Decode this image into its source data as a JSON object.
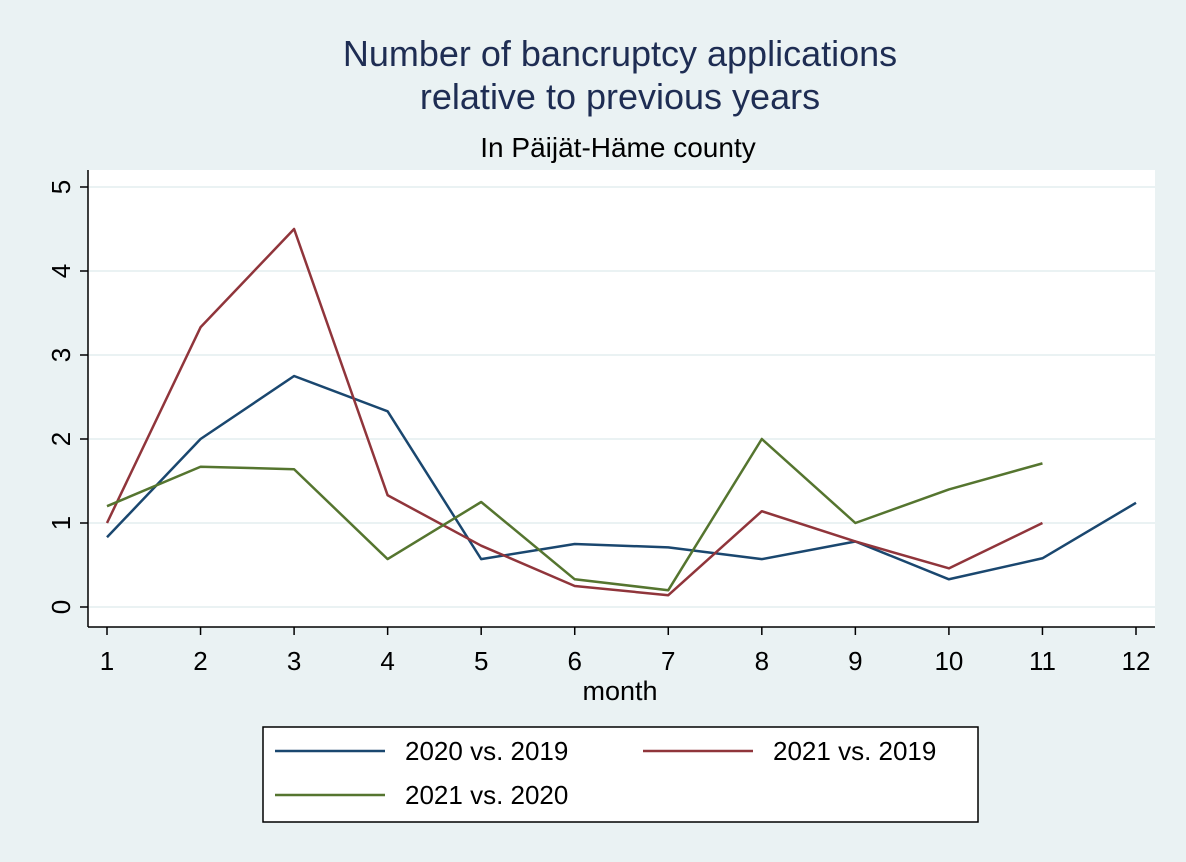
{
  "chart_data": {
    "type": "line",
    "title": [
      "Number of bancruptcy applications",
      "relative to previous years"
    ],
    "subtitle": "In Päijät-Häme county",
    "x_label": "month",
    "x": [
      1,
      2,
      3,
      4,
      5,
      6,
      7,
      8,
      9,
      10,
      11,
      12
    ],
    "series": [
      {
        "name": "2020 vs. 2019",
        "color": "#1a476f",
        "values": [
          0.83,
          2.0,
          2.75,
          2.33,
          0.57,
          0.75,
          0.71,
          0.57,
          0.78,
          0.33,
          0.58,
          1.24
        ]
      },
      {
        "name": "2021 vs. 2019",
        "color": "#90353b",
        "values": [
          1.0,
          3.33,
          4.5,
          1.33,
          0.73,
          0.25,
          0.14,
          1.14,
          0.78,
          0.46,
          1.0,
          null
        ]
      },
      {
        "name": "2021 vs. 2020",
        "color": "#55752f",
        "values": [
          1.2,
          1.67,
          1.64,
          0.57,
          1.25,
          0.33,
          0.2,
          2.0,
          1.0,
          1.4,
          1.71,
          null
        ]
      }
    ],
    "xlim": [
      1,
      12
    ],
    "xticks": [
      1,
      2,
      3,
      4,
      5,
      6,
      7,
      8,
      9,
      10,
      11,
      12
    ],
    "ylim": [
      0,
      5
    ],
    "yticks": [
      0,
      1,
      2,
      3,
      4,
      5
    ],
    "grid": true
  }
}
